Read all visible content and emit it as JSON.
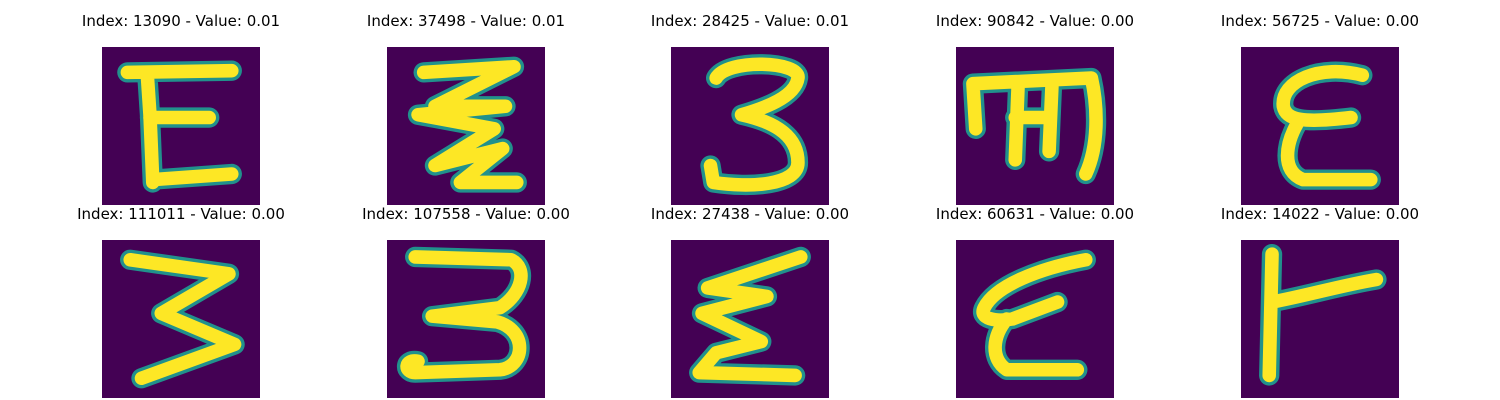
{
  "colors": {
    "background": "#440154",
    "stroke_edge": "#21918c",
    "stroke_core": "#fde725"
  },
  "panels": [
    {
      "title": "Index: 13090 - Value: 0.01",
      "glyph": "E-upright"
    },
    {
      "title": "Index: 37498 - Value: 0.01",
      "glyph": "zigzag-three"
    },
    {
      "title": "Index: 28425 - Value: 0.01",
      "glyph": "three-narrow"
    },
    {
      "title": "Index: 90842 - Value: 0.00",
      "glyph": "rotated-m"
    },
    {
      "title": "Index: 56725 - Value: 0.00",
      "glyph": "E-curvy"
    },
    {
      "title": "Index: 111011 - Value: 0.00",
      "glyph": "three-angular"
    },
    {
      "title": "Index: 107558 - Value: 0.00",
      "glyph": "three-looped"
    },
    {
      "title": "Index: 27438 - Value: 0.00",
      "glyph": "sigma-like"
    },
    {
      "title": "Index: 60631 - Value: 0.00",
      "glyph": "E-slanted"
    },
    {
      "title": "Index: 14022 - Value: 0.00",
      "glyph": "T-rotated"
    }
  ]
}
